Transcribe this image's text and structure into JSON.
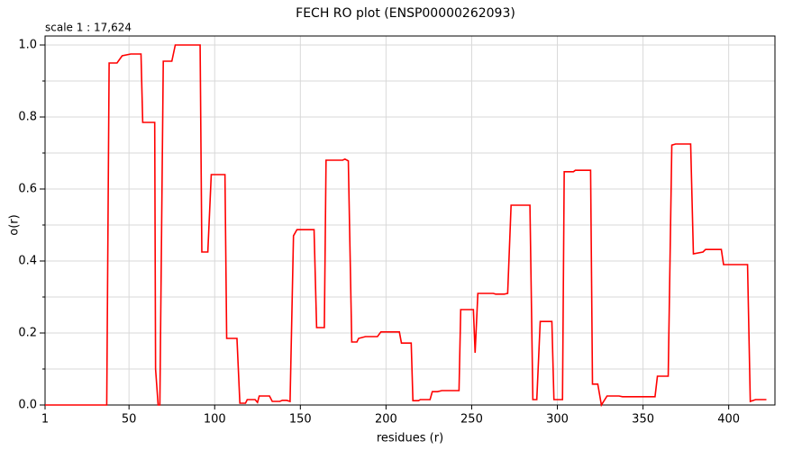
{
  "chart_data": {
    "type": "line",
    "title": "FECH RO plot (ENSP00000262093)",
    "annotation": "scale 1 : 17,624",
    "x_label": "residues (r)",
    "y_label": "o(r)",
    "xlim": [
      1,
      427
    ],
    "ylim": [
      0,
      1.025
    ],
    "xticks": [
      1,
      50,
      100,
      150,
      200,
      250,
      300,
      350,
      400
    ],
    "yticks": [
      {
        "value": 0,
        "label": "0.0"
      },
      0.2,
      0.4,
      0.6,
      0.8,
      {
        "value": 1,
        "label": "1.0"
      }
    ],
    "yminorticks": [
      0.1,
      0.3,
      0.5,
      0.7,
      0.9
    ],
    "grid": true,
    "x": [
      1,
      37,
      38.4,
      43,
      46,
      51,
      57,
      58,
      65,
      65.5,
      67,
      68,
      70,
      75,
      77,
      91.5,
      92.5,
      96,
      98,
      106,
      107,
      113,
      114.7,
      118,
      119,
      123.6,
      125,
      126,
      132,
      133.6,
      138,
      139.5,
      142,
      144,
      146,
      148,
      158,
      159.5,
      164,
      165,
      174.7,
      176,
      178,
      180,
      183,
      184,
      188,
      195,
      197,
      207.8,
      209,
      214.7,
      215.7,
      219,
      220,
      225.7,
      227,
      230,
      232.6,
      242.6,
      243.6,
      251,
      252,
      253.6,
      262.6,
      264,
      269,
      271,
      273,
      284,
      285.7,
      288,
      290,
      296.8,
      298,
      303,
      304,
      309.4,
      310.5,
      319.4,
      320.5,
      323.6,
      325.7,
      329,
      336,
      338,
      357,
      358.4,
      364.7,
      366.8,
      369,
      377.8,
      379.4,
      385,
      386.5,
      395.7,
      397,
      411,
      412.6,
      415.7,
      422
    ],
    "series": [
      {
        "color": "#ff0000",
        "values": [
          0,
          0,
          0.95,
          0.95,
          0.97,
          0.975,
          0.975,
          0.785,
          0.785,
          0.1,
          0,
          0,
          0.955,
          0.955,
          1.0,
          1.0,
          0.425,
          0.425,
          0.64,
          0.64,
          0.185,
          0.185,
          0.005,
          0.005,
          0.015,
          0.015,
          0.007,
          0.025,
          0.025,
          0.01,
          0.01,
          0.013,
          0.013,
          0.01,
          0.47,
          0.487,
          0.487,
          0.215,
          0.215,
          0.68,
          0.68,
          0.683,
          0.678,
          0.175,
          0.175,
          0.185,
          0.19,
          0.19,
          0.203,
          0.203,
          0.172,
          0.172,
          0.012,
          0.012,
          0.015,
          0.015,
          0.037,
          0.037,
          0.04,
          0.04,
          0.265,
          0.265,
          0.145,
          0.31,
          0.31,
          0.308,
          0.308,
          0.31,
          0.555,
          0.555,
          0.015,
          0.015,
          0.232,
          0.232,
          0.015,
          0.015,
          0.648,
          0.648,
          0.652,
          0.652,
          0.058,
          0.058,
          0,
          0.025,
          0.025,
          0.023,
          0.023,
          0.08,
          0.08,
          0.722,
          0.725,
          0.725,
          0.42,
          0.425,
          0.432,
          0.432,
          0.39,
          0.39,
          0.01,
          0.015,
          0.015
        ]
      }
    ]
  }
}
